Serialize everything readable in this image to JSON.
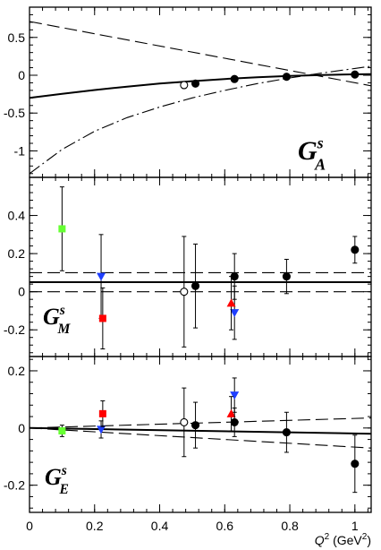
{
  "chart_data": [
    {
      "type": "scatter",
      "panel_label": {
        "main": "G",
        "sup": "s",
        "sub": "A"
      },
      "xlim": [
        0,
        1.05
      ],
      "ylim": [
        -1.35,
        0.9
      ],
      "yticks": [
        0.5,
        0,
        -0.5,
        -1
      ],
      "ytick_labels": [
        "0.5",
        "0",
        "-0.5",
        "-1"
      ],
      "curves": [
        {
          "style": "solid",
          "x": [
            0,
            0.1,
            0.2,
            0.3,
            0.4,
            0.5,
            0.6,
            0.7,
            0.8,
            0.9,
            1.0,
            1.05
          ],
          "y": [
            -0.3,
            -0.245,
            -0.195,
            -0.15,
            -0.11,
            -0.078,
            -0.05,
            -0.027,
            -0.009,
            0.004,
            0.012,
            0.015
          ]
        },
        {
          "style": "longdash",
          "x": [
            0,
            1.05
          ],
          "y": [
            0.71,
            -0.14
          ]
        },
        {
          "style": "dashdot",
          "x": [
            0,
            0.1,
            0.2,
            0.3,
            0.4,
            0.5,
            0.6,
            0.7,
            0.8,
            0.9,
            1.0,
            1.05
          ],
          "y": [
            -1.3,
            -0.98,
            -0.74,
            -0.56,
            -0.42,
            -0.3,
            -0.2,
            -0.11,
            -0.035,
            0.03,
            0.09,
            0.12
          ]
        }
      ],
      "series": [
        {
          "marker": "circle",
          "filled": true,
          "color": "#000000",
          "points": [
            {
              "x": 0.51,
              "y": -0.11,
              "err": 0.02
            },
            {
              "x": 0.63,
              "y": -0.05,
              "err": 0.02
            },
            {
              "x": 0.79,
              "y": -0.02,
              "err": 0.02
            },
            {
              "x": 1.0,
              "y": 0.01,
              "err": 0.02
            }
          ]
        },
        {
          "marker": "circle",
          "filled": false,
          "color": "#000000",
          "points": [
            {
              "x": 0.475,
              "y": -0.13,
              "err": 0.04
            }
          ]
        }
      ]
    },
    {
      "type": "scatter",
      "panel_label": {
        "main": "G",
        "sup": "s",
        "sub": "M"
      },
      "xlim": [
        0,
        1.05
      ],
      "ylim": [
        -0.34,
        0.6
      ],
      "yticks": [
        0.4,
        0.2,
        0,
        -0.2
      ],
      "ytick_labels": [
        "0.4",
        "0.2",
        "0",
        "-0.2"
      ],
      "curves": [
        {
          "style": "solid",
          "x": [
            0,
            1.05
          ],
          "y": [
            0.05,
            0.05
          ]
        },
        {
          "style": "longdash",
          "x": [
            0,
            1.05
          ],
          "y": [
            0.1,
            0.1
          ]
        },
        {
          "style": "longdash",
          "x": [
            0,
            1.05
          ],
          "y": [
            0.0,
            0.0
          ]
        }
      ],
      "series": [
        {
          "marker": "square",
          "filled": true,
          "color": "#66ff33",
          "points": [
            {
              "x": 0.1,
              "y": 0.33,
              "err": 0.22
            }
          ]
        },
        {
          "marker": "triangle-down",
          "filled": true,
          "color": "#1f3fff",
          "points": [
            {
              "x": 0.22,
              "y": 0.08,
              "err": 0.22
            },
            {
              "x": 0.63,
              "y": -0.11,
              "err": 0.14
            }
          ]
        },
        {
          "marker": "square",
          "filled": true,
          "color": "#ff0000",
          "points": [
            {
              "x": 0.225,
              "y": -0.14,
              "err": 0.16
            }
          ]
        },
        {
          "marker": "triangle-up",
          "filled": true,
          "color": "#ff0000",
          "points": [
            {
              "x": 0.62,
              "y": -0.06,
              "err": 0.14
            }
          ]
        },
        {
          "marker": "circle",
          "filled": false,
          "color": "#000000",
          "points": [
            {
              "x": 0.475,
              "y": 0.0,
              "err": 0.29
            }
          ]
        },
        {
          "marker": "circle",
          "filled": true,
          "color": "#000000",
          "points": [
            {
              "x": 0.51,
              "y": 0.03,
              "err": 0.22
            },
            {
              "x": 0.63,
              "y": 0.08,
              "err": 0.12
            },
            {
              "x": 0.79,
              "y": 0.08,
              "err": 0.09
            },
            {
              "x": 1.0,
              "y": 0.22,
              "err": 0.07
            }
          ]
        }
      ]
    },
    {
      "type": "scatter",
      "panel_label": {
        "main": "G",
        "sup": "s",
        "sub": "E"
      },
      "xlim": [
        0,
        1.05
      ],
      "ylim": [
        -0.295,
        0.25
      ],
      "yticks": [
        0.2,
        0,
        -0.2
      ],
      "ytick_labels": [
        "0.2",
        "0",
        "-0.2"
      ],
      "xticks": [
        0,
        0.2,
        0.4,
        0.6,
        0.8,
        1
      ],
      "xtick_labels": [
        "0",
        "0.2",
        "0.4",
        "0.6",
        "0.8",
        "1"
      ],
      "xlabel": {
        "q": "Q",
        "sup": "2",
        "unit": " (GeV",
        "unit_sup": "2",
        "close": ")"
      },
      "curves": [
        {
          "style": "solid",
          "x": [
            0,
            1.05
          ],
          "y": [
            0.0,
            -0.02
          ]
        },
        {
          "style": "longdash",
          "x": [
            0,
            1.05
          ],
          "y": [
            0.0,
            0.035
          ]
        },
        {
          "style": "longdash",
          "x": [
            0,
            1.05
          ],
          "y": [
            0.0,
            -0.07
          ]
        }
      ],
      "series": [
        {
          "marker": "square",
          "filled": true,
          "color": "#66ff33",
          "points": [
            {
              "x": 0.1,
              "y": -0.01,
              "err": 0.02
            }
          ]
        },
        {
          "marker": "triangle-down",
          "filled": true,
          "color": "#1f3fff",
          "points": [
            {
              "x": 0.22,
              "y": -0.005,
              "err": 0.03
            },
            {
              "x": 0.63,
              "y": 0.115,
              "err": 0.06
            }
          ]
        },
        {
          "marker": "square",
          "filled": true,
          "color": "#ff0000",
          "points": [
            {
              "x": 0.225,
              "y": 0.05,
              "err": 0.045
            }
          ]
        },
        {
          "marker": "triangle-up",
          "filled": true,
          "color": "#ff0000",
          "points": [
            {
              "x": 0.62,
              "y": 0.05,
              "err": 0.06
            }
          ]
        },
        {
          "marker": "circle",
          "filled": false,
          "color": "#000000",
          "points": [
            {
              "x": 0.475,
              "y": 0.02,
              "err": 0.12
            }
          ]
        },
        {
          "marker": "circle",
          "filled": true,
          "color": "#000000",
          "points": [
            {
              "x": 0.51,
              "y": 0.01,
              "err": 0.08
            },
            {
              "x": 0.63,
              "y": 0.02,
              "err": 0.05
            },
            {
              "x": 0.79,
              "y": -0.015,
              "err": 0.07
            },
            {
              "x": 1.0,
              "y": -0.125,
              "err": 0.1
            }
          ]
        }
      ]
    }
  ]
}
